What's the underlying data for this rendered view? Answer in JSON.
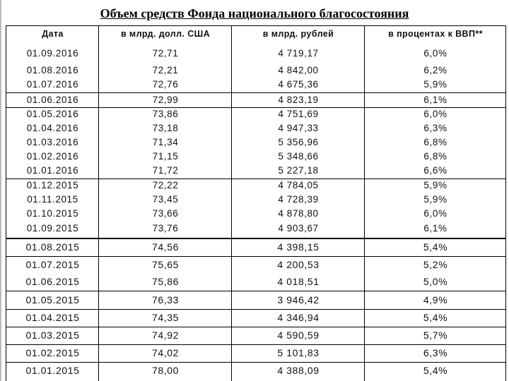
{
  "title": "Объем средств Фонда национального  благосостояния",
  "table": {
    "headers": [
      "Дата",
      "в млрд. долл. США",
      "в млрд. рублей",
      "в процентах к ВВП**"
    ],
    "rows": [
      [
        "01.09.2016",
        "72,71",
        "4 719,17",
        "6,0%"
      ],
      [
        "01.08.2016",
        "72,21",
        "4 842,00",
        "6,2%"
      ],
      [
        "01.07.2016",
        "72,76",
        "4 675,36",
        "5,9%"
      ],
      [
        "01.06.2016",
        "72,99",
        "4 823,19",
        "6,1%"
      ],
      [
        "01.05.2016",
        "73,86",
        "4 751,69",
        "6,0%"
      ],
      [
        "01.04.2016",
        "73,18",
        "4 947,33",
        "6,3%"
      ],
      [
        "01.03.2016",
        "71,34",
        "5 356,96",
        "6,8%"
      ],
      [
        "01.02.2016",
        "71,15",
        "5 348,66",
        "6,8%"
      ],
      [
        "01.01.2016",
        "71,72",
        "5 227,18",
        "6,6%"
      ],
      [
        "01.12.2015",
        "72,22",
        "4 784,05",
        "5,9%"
      ],
      [
        "01.11.2015",
        "73,45",
        "4 728,39",
        "5,9%"
      ],
      [
        "01.10.2015",
        "73,66",
        "4 878,80",
        "6,0%"
      ],
      [
        "01.09.2015",
        "73,76",
        "4 903,67",
        "6,1%"
      ],
      [
        "01.08.2015",
        "74,56",
        "4 398,15",
        "5,4%"
      ],
      [
        "01.07.2015",
        "75,65",
        "4 200,53",
        "5,2%"
      ],
      [
        "01.06.2015",
        "75,86",
        "4 018,51",
        "5,0%"
      ],
      [
        "01.05.2015",
        "76,33",
        "3 946,42",
        "4,9%"
      ],
      [
        "01.04.2015",
        "74,35",
        "4 346,94",
        "5,4%"
      ],
      [
        "01.03.2015",
        "74,92",
        "4 590,59",
        "5,7%"
      ],
      [
        "01.02.2015",
        "74,02",
        "5 101,83",
        "6,3%"
      ],
      [
        "01.01.2015",
        "78,00",
        "4 388,09",
        "5,4%"
      ]
    ]
  }
}
